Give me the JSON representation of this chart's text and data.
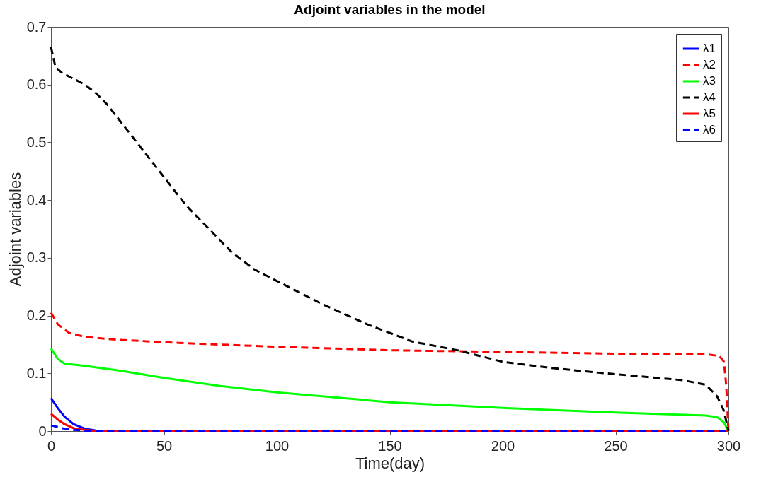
{
  "chart_data": {
    "type": "line",
    "title": "Adjoint variables in the model",
    "xlabel": "Time(day)",
    "ylabel": "Adjoint variables",
    "xlim": [
      0,
      300
    ],
    "xticks": [
      0,
      50,
      100,
      150,
      200,
      250,
      300
    ],
    "ylim": [
      0,
      0.7
    ],
    "yticks": [
      0,
      0.1,
      0.2,
      0.3,
      0.4,
      0.5,
      0.6,
      0.7
    ],
    "grid": false,
    "legend": "top right",
    "marker": "none",
    "series": [
      {
        "name": "λ1",
        "color": "#0000ff",
        "line_style": "solid",
        "x": [
          0,
          3,
          6,
          10,
          15,
          20,
          30,
          300
        ],
        "values": [
          0.057,
          0.04,
          0.025,
          0.012,
          0.004,
          0.001,
          0,
          0
        ]
      },
      {
        "name": "λ2",
        "color": "#ff0000",
        "line_style": "dashed",
        "x": [
          0,
          3,
          8,
          15,
          30,
          60,
          100,
          150,
          200,
          250,
          290,
          296,
          298,
          299,
          300
        ],
        "values": [
          0.205,
          0.185,
          0.17,
          0.163,
          0.158,
          0.152,
          0.146,
          0.14,
          0.137,
          0.134,
          0.133,
          0.13,
          0.12,
          0.08,
          0
        ]
      },
      {
        "name": "λ3",
        "color": "#00ff00",
        "line_style": "solid",
        "x": [
          0,
          3,
          6,
          15,
          30,
          50,
          75,
          100,
          150,
          200,
          250,
          290,
          295,
          298,
          300
        ],
        "values": [
          0.143,
          0.125,
          0.117,
          0.113,
          0.105,
          0.092,
          0.078,
          0.067,
          0.05,
          0.04,
          0.032,
          0.027,
          0.024,
          0.015,
          0
        ]
      },
      {
        "name": "λ4",
        "color": "#000000",
        "line_style": "dashed",
        "x": [
          0,
          2,
          5,
          10,
          15,
          20,
          25,
          30,
          40,
          50,
          60,
          70,
          80,
          90,
          100,
          110,
          120,
          140,
          160,
          180,
          200,
          220,
          240,
          260,
          280,
          290,
          295,
          298,
          300
        ],
        "values": [
          0.665,
          0.63,
          0.62,
          0.61,
          0.6,
          0.585,
          0.565,
          0.54,
          0.49,
          0.44,
          0.39,
          0.35,
          0.31,
          0.28,
          0.26,
          0.24,
          0.22,
          0.185,
          0.155,
          0.14,
          0.12,
          0.11,
          0.102,
          0.095,
          0.088,
          0.08,
          0.06,
          0.035,
          0
        ]
      },
      {
        "name": "λ5",
        "color": "#ff0000",
        "line_style": "solid",
        "x": [
          0,
          3,
          6,
          10,
          15,
          20,
          300
        ],
        "values": [
          0.03,
          0.02,
          0.012,
          0.005,
          0.002,
          0,
          0
        ]
      },
      {
        "name": "λ6",
        "color": "#0000ff",
        "line_style": "dashed",
        "x": [
          0,
          5,
          10,
          20,
          300
        ],
        "values": [
          0.01,
          0.005,
          0.002,
          0,
          0
        ]
      }
    ]
  }
}
